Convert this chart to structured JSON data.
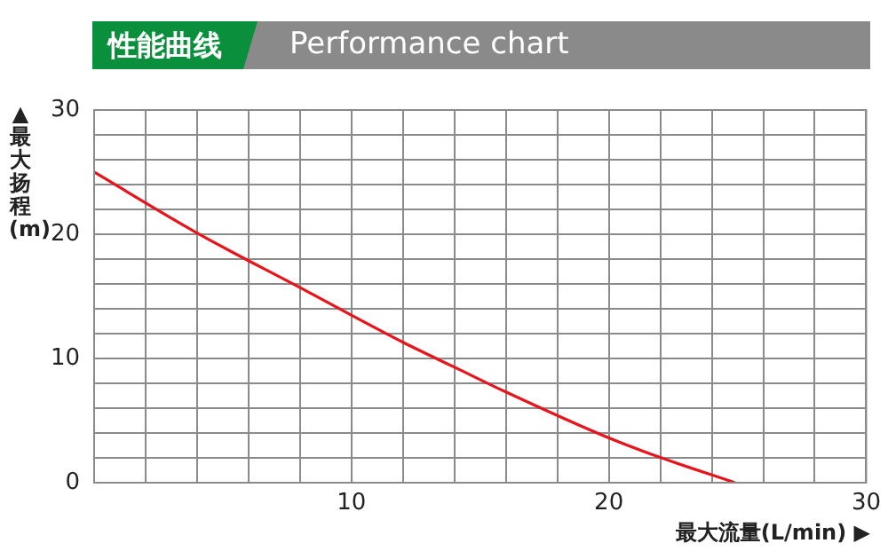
{
  "chart_data": {
    "type": "line",
    "title": "性能曲线",
    "subtitle": "Performance chart",
    "xlabel": "最大流量(L/min) ▶",
    "ylabel": "▲最大扬程(m)",
    "x": [
      0,
      4,
      8,
      12,
      14.2,
      16,
      20,
      21.9,
      24.9
    ],
    "series": [
      {
        "color": "#e8141b",
        "values": [
          25,
          20.1,
          15.7,
          11.3,
          9.1,
          7.3,
          3.6,
          2.1,
          0
        ]
      }
    ],
    "xlim": [
      0,
      30
    ],
    "xticks": [
      {
        "value": 0,
        "label": null
      },
      {
        "value": 2,
        "label": null
      },
      {
        "value": 4,
        "label": null
      },
      {
        "value": 6,
        "label": null
      },
      {
        "value": 8,
        "label": null
      },
      10,
      {
        "value": 12,
        "label": null
      },
      {
        "value": 14,
        "label": null
      },
      {
        "value": 16,
        "label": null
      },
      {
        "value": 18,
        "label": null
      },
      20,
      {
        "value": 22,
        "label": null
      },
      {
        "value": 24,
        "label": null
      },
      {
        "value": 26,
        "label": null
      },
      {
        "value": 28,
        "label": null
      },
      30
    ],
    "ylim": [
      0,
      30
    ],
    "yticks": [
      0,
      {
        "value": 2,
        "label": null
      },
      {
        "value": 4,
        "label": null
      },
      {
        "value": 6,
        "label": null
      },
      {
        "value": 8,
        "label": null
      },
      10,
      {
        "value": 12,
        "label": null
      },
      {
        "value": 14,
        "label": null
      },
      {
        "value": 16,
        "label": null
      },
      {
        "value": 18,
        "label": null
      },
      20,
      {
        "value": 22,
        "label": null
      },
      {
        "value": 24,
        "label": null
      },
      {
        "value": 26,
        "label": null
      },
      {
        "value": 28,
        "label": null
      },
      30
    ],
    "grid": true,
    "legend": false,
    "marker": "none",
    "line_style": "solid"
  }
}
